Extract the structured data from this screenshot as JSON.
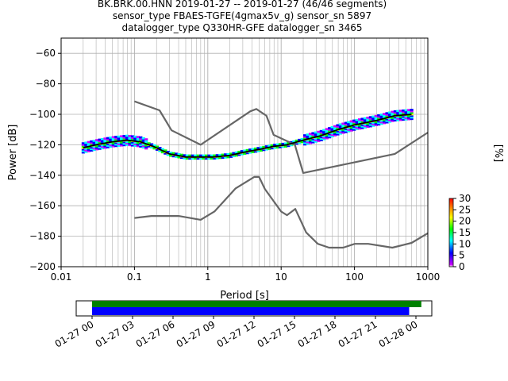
{
  "title_lines": [
    "BK.BRK.00.HNN   2019-01-27 -- 2019-01-27  (46/46 segments)",
    "sensor_type FBAES-TGFE(4gmax5v_g) sensor_sn 5897",
    "datalogger_type Q330HR-GFE datalogger_sn 3465"
  ],
  "colors": {
    "mode_line": "#000000",
    "noise_model": "#666666",
    "coverage_all": "#0000ff",
    "coverage_used": "#008000",
    "colormap": [
      "#ffffff",
      "#cc00ff",
      "#0000ff",
      "#00ffff",
      "#00ff00",
      "#ffff00",
      "#ff8800",
      "#ff0000"
    ]
  },
  "chart_data": [
    {
      "type": "heatmap",
      "description_type": "probabilistic power spectral density",
      "xlabel": "Period [s]",
      "ylabel": "Power [dB]",
      "xscale": "log",
      "xlim": [
        0.01,
        1000
      ],
      "ylim": [
        -200,
        -50
      ],
      "x_tick_labels": [
        "0.01",
        "0.1",
        "1",
        "10",
        "100",
        "1000"
      ],
      "y_ticks": [
        -200,
        -180,
        -160,
        -140,
        -120,
        -100,
        -80,
        -60
      ],
      "grid": true,
      "colorbar": {
        "label": "[%]",
        "min": 0,
        "max": 30,
        "ticks": [
          0,
          5,
          10,
          15,
          20,
          25,
          30
        ]
      },
      "mode_curve": {
        "x": [
          0.02,
          0.03,
          0.05,
          0.08,
          0.12,
          0.18,
          0.3,
          0.5,
          0.8,
          1.2,
          2,
          3,
          5,
          8,
          12,
          20,
          35,
          60,
          100,
          200,
          350,
          600
        ],
        "y": [
          -122,
          -120,
          -118,
          -117,
          -118,
          -121,
          -126,
          -128,
          -128,
          -128,
          -127,
          -125,
          -123,
          -121,
          -120,
          -117,
          -114,
          -110,
          -107,
          -104,
          -101,
          -100
        ]
      },
      "high_noise_model": {
        "x": [
          0.1,
          0.22,
          0.32,
          0.8,
          3.8,
          4.6,
          6.3,
          7.9,
          15.4,
          20,
          354.8,
          1000
        ],
        "y": [
          -91.5,
          -97.4,
          -110.5,
          -120,
          -98,
          -96.5,
          -101,
          -113.5,
          -120,
          -138.5,
          -126,
          -112
        ]
      },
      "low_noise_model": {
        "x": [
          0.1,
          0.17,
          0.4,
          0.8,
          1.24,
          2.4,
          4.3,
          5,
          6,
          10,
          12,
          15.6,
          21.9,
          31.6,
          45,
          70,
          101,
          154,
          328,
          600,
          1000
        ],
        "y": [
          -168,
          -166.7,
          -166.7,
          -169.2,
          -163.7,
          -148.6,
          -141.1,
          -141.1,
          -149,
          -163.8,
          -166.2,
          -162.1,
          -177.5,
          -185,
          -187.5,
          -187.5,
          -185,
          -185,
          -187.5,
          -184.4,
          -178
        ]
      }
    },
    {
      "type": "bar",
      "description_type": "data coverage timeline",
      "x_tick_labels": [
        "01-27 00",
        "01-27 03",
        "01-27 06",
        "01-27 09",
        "01-27 12",
        "01-27 15",
        "01-27 18",
        "01-27 21",
        "01-28 00"
      ],
      "series": [
        {
          "name": "",
          "color": "#008000",
          "start_hours": 0,
          "end_hours": 24.4
        },
        {
          "name": "",
          "color": "#0000ff",
          "start_hours": 0,
          "end_hours": 23.5
        }
      ]
    }
  ]
}
